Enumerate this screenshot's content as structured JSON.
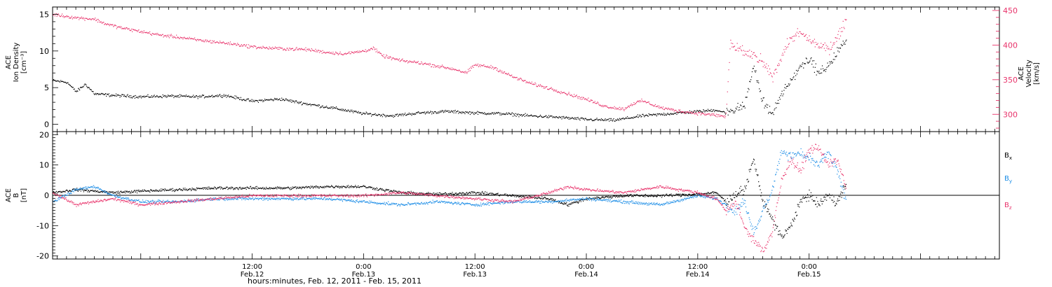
{
  "xaxis": {
    "title": "hours:minutes, Feb. 12, 2011 - Feb. 15, 2011",
    "range_hours": [
      -9.5,
      92.5
    ],
    "ticks": [
      {
        "hour": 12,
        "time": "12:00",
        "date": "Feb.12"
      },
      {
        "hour": 24,
        "time": "0:00",
        "date": "Feb.13"
      },
      {
        "hour": 36,
        "time": "12:00",
        "date": "Feb.13"
      },
      {
        "hour": 48,
        "time": "0:00",
        "date": "Feb.14"
      },
      {
        "hour": 60,
        "time": "12:00",
        "date": "Feb.14"
      },
      {
        "hour": 72,
        "time": "0:00",
        "date": "Feb.15"
      }
    ]
  },
  "panel1": {
    "left_label": [
      "ACE",
      "Ion Density",
      "[cm⁻³]"
    ],
    "right_label": [
      "ACE",
      "Velocity",
      "[km/s]"
    ],
    "left_ticks": [
      0,
      5,
      10,
      15
    ],
    "right_ticks": [
      300,
      350,
      400,
      450
    ]
  },
  "panel2": {
    "left_label": [
      "ACE",
      "B",
      "[nT]"
    ],
    "left_ticks": [
      -20,
      -10,
      0,
      10,
      20
    ],
    "legend": [
      {
        "base": "B",
        "sub": "x",
        "color": "#000000"
      },
      {
        "base": "B",
        "sub": "y",
        "color": "#1a8ce6"
      },
      {
        "base": "B",
        "sub": "z",
        "color": "#e8336b"
      }
    ]
  },
  "colors": {
    "density": "#000000",
    "velocity": "#e8336b",
    "bx": "#000000",
    "by": "#1a8ce6",
    "bz": "#e8336b"
  },
  "chart_data": [
    {
      "type": "scatter",
      "title": "",
      "xlabel": "hours:minutes, Feb. 12, 2011 - Feb. 15, 2011",
      "x_unit": "hours from Feb. 12 00:00 UT",
      "xlim": [
        -9.5,
        92.5
      ],
      "series": [
        {
          "name": "Ion Density",
          "axis": "left",
          "ylim": [
            -1,
            16
          ],
          "x": [
            -9.5,
            -8,
            -7,
            -6,
            -5,
            -3,
            0,
            3,
            6,
            9,
            12,
            15,
            18,
            21,
            24,
            27,
            30,
            33,
            36,
            39,
            42,
            45,
            48,
            51,
            54,
            57,
            60,
            62,
            63,
            64,
            65,
            66,
            67,
            68,
            69,
            70,
            71,
            72,
            73,
            74,
            75,
            76
          ],
          "values": [
            6,
            5.8,
            4.5,
            5.5,
            4.2,
            4,
            3.8,
            3.9,
            3.8,
            4,
            3.2,
            3.5,
            2.8,
            2.2,
            1.5,
            1.2,
            1.6,
            1.8,
            1.6,
            1.5,
            1.2,
            1,
            0.7,
            0.6,
            1.2,
            1.5,
            1.8,
            2,
            1.6,
            2.1,
            2.5,
            8,
            3,
            1.5,
            4,
            6,
            8,
            9,
            7,
            8,
            10,
            11.5
          ]
        },
        {
          "name": "Velocity",
          "axis": "right",
          "ylim": [
            275,
            455
          ],
          "x": [
            -9.5,
            -7,
            -5,
            -4,
            -2,
            0,
            2,
            4,
            6,
            8,
            10,
            12,
            14,
            16,
            18,
            20,
            22,
            24,
            25,
            26,
            28,
            30,
            32,
            34,
            35,
            36,
            38,
            40,
            42,
            44,
            46,
            48,
            50,
            52,
            53,
            54,
            56,
            58,
            60,
            62,
            63,
            63.5,
            64,
            66,
            67,
            68,
            69,
            70,
            71,
            72,
            73,
            74,
            75,
            76
          ],
          "values": [
            445,
            440,
            438,
            432,
            425,
            420,
            415,
            412,
            408,
            405,
            402,
            398,
            396,
            395,
            394,
            390,
            388,
            392,
            396,
            385,
            378,
            375,
            370,
            365,
            360,
            372,
            368,
            355,
            345,
            338,
            330,
            322,
            312,
            308,
            316,
            320,
            310,
            305,
            302,
            299,
            297,
            405,
            395,
            385,
            375,
            355,
            385,
            410,
            418,
            408,
            398,
            395,
            410,
            440
          ]
        }
      ]
    },
    {
      "type": "scatter",
      "title": "",
      "xlabel": "hours:minutes, Feb. 12, 2011 - Feb. 15, 2011",
      "x_unit": "hours from Feb. 12 00:00 UT",
      "xlim": [
        -9.5,
        92.5
      ],
      "ylim": [
        -21,
        21
      ],
      "series": [
        {
          "name": "Bx",
          "x": [
            -9.5,
            -7,
            -5,
            -3,
            0,
            4,
            8,
            12,
            16,
            20,
            24,
            26,
            28,
            32,
            36,
            40,
            44,
            46,
            48,
            52,
            56,
            60,
            62,
            63,
            64,
            65,
            66,
            67,
            68,
            69,
            70,
            71,
            72,
            73,
            74,
            75,
            76
          ],
          "values": [
            1,
            2,
            1.5,
            1,
            1.5,
            2,
            2.5,
            2.5,
            2.5,
            3,
            3,
            2,
            1,
            0.5,
            1,
            0,
            -1,
            -3,
            -1,
            0,
            0,
            0.5,
            1,
            -2,
            0,
            2,
            12,
            -2,
            -8,
            -14,
            -10,
            -2,
            0,
            -3,
            0,
            -2,
            4
          ]
        },
        {
          "name": "By",
          "x": [
            -9.5,
            -7,
            -5,
            -3,
            0,
            4,
            8,
            12,
            16,
            20,
            24,
            28,
            32,
            36,
            40,
            44,
            48,
            52,
            56,
            60,
            62,
            63,
            64,
            65,
            66,
            67,
            68,
            69,
            70,
            71,
            72,
            73,
            74,
            75,
            76
          ],
          "values": [
            -2,
            2,
            3,
            0,
            -2,
            -2,
            -1,
            -1,
            -1,
            -1,
            -2,
            -3,
            -2,
            -3,
            -2,
            -2,
            -1,
            -2,
            -3,
            0,
            -1,
            -3,
            -5,
            -2,
            -12,
            -5,
            2,
            15,
            13,
            14,
            12,
            10,
            14,
            8,
            -2
          ]
        },
        {
          "name": "Bz",
          "x": [
            -9.5,
            -7,
            -5,
            -3,
            0,
            4,
            8,
            12,
            16,
            20,
            24,
            28,
            32,
            36,
            40,
            44,
            46,
            48,
            52,
            56,
            60,
            62,
            63,
            64,
            65,
            66,
            67,
            68,
            69,
            70,
            71,
            72,
            73,
            74,
            75,
            76
          ],
          "values": [
            1,
            -3,
            -2,
            -1,
            -3,
            -2,
            -1,
            0,
            0,
            0,
            0,
            1,
            0,
            -1,
            -2,
            1,
            3,
            2,
            1,
            3,
            1,
            -1,
            -5,
            -2,
            -10,
            -15,
            -18,
            -12,
            5,
            12,
            8,
            15,
            16,
            10,
            12,
            2
          ]
        }
      ]
    }
  ]
}
